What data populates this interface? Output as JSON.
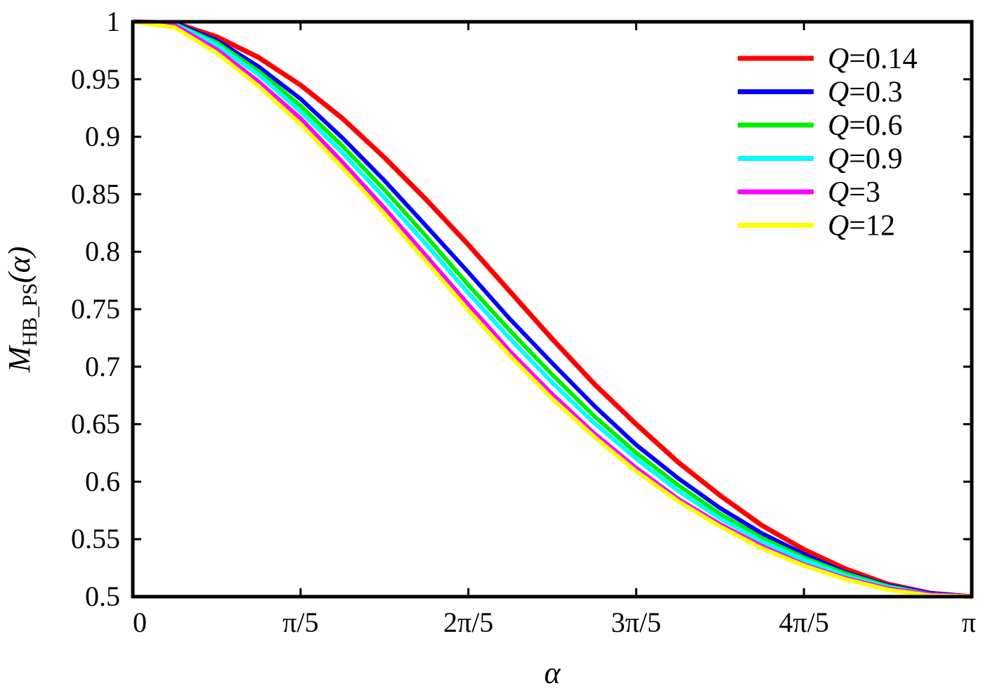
{
  "chart_data": {
    "type": "line",
    "xlabel": "α",
    "ylabel_main": "M",
    "ylabel_sub": "HB_PS",
    "ylabel_suffix": "(α)",
    "xlim": [
      0,
      3.14159
    ],
    "ylim": [
      0.5,
      1.0
    ],
    "xticks": [
      {
        "value": 0,
        "label": "0"
      },
      {
        "value": 0.62832,
        "label": "π/5"
      },
      {
        "value": 1.25664,
        "label": "2π/5"
      },
      {
        "value": 1.88496,
        "label": "3π/5"
      },
      {
        "value": 2.51327,
        "label": "4π/5"
      },
      {
        "value": 3.14159,
        "label": "π"
      }
    ],
    "yticks": [
      {
        "value": 1.0,
        "label": "1"
      },
      {
        "value": 0.95,
        "label": "0.95"
      },
      {
        "value": 0.9,
        "label": "0.9"
      },
      {
        "value": 0.85,
        "label": "0.85"
      },
      {
        "value": 0.8,
        "label": "0.8"
      },
      {
        "value": 0.75,
        "label": "0.75"
      },
      {
        "value": 0.7,
        "label": "0.7"
      },
      {
        "value": 0.65,
        "label": "0.65"
      },
      {
        "value": 0.6,
        "label": "0.6"
      },
      {
        "value": 0.55,
        "label": "0.55"
      },
      {
        "value": 0.5,
        "label": "0.5"
      }
    ],
    "grid": false,
    "legend_position": "top-right",
    "x": [
      0,
      0.157,
      0.314,
      0.471,
      0.628,
      0.785,
      0.942,
      1.1,
      1.257,
      1.414,
      1.571,
      1.728,
      1.885,
      2.042,
      2.199,
      2.356,
      2.513,
      2.67,
      2.827,
      2.985,
      3.142
    ],
    "series": [
      {
        "name": "Q=0.14",
        "legend_q": "Q",
        "legend_val": "=0.14",
        "color": "#ff0000",
        "values": [
          1.0,
          0.999,
          0.987,
          0.969,
          0.945,
          0.916,
          0.882,
          0.845,
          0.806,
          0.765,
          0.724,
          0.685,
          0.65,
          0.617,
          0.588,
          0.562,
          0.541,
          0.524,
          0.511,
          0.503,
          0.5
        ]
      },
      {
        "name": "Q=0.3",
        "legend_q": "Q",
        "legend_val": "=0.3",
        "color": "#0000ff",
        "values": [
          1.0,
          0.999,
          0.984,
          0.961,
          0.933,
          0.899,
          0.862,
          0.822,
          0.782,
          0.741,
          0.703,
          0.666,
          0.632,
          0.603,
          0.577,
          0.555,
          0.537,
          0.521,
          0.51,
          0.503,
          0.5
        ]
      },
      {
        "name": "Q=0.6",
        "legend_q": "Q",
        "legend_val": "=0.6",
        "color": "#00ee00",
        "values": [
          1.0,
          0.998,
          0.982,
          0.957,
          0.927,
          0.892,
          0.854,
          0.813,
          0.771,
          0.731,
          0.693,
          0.657,
          0.625,
          0.597,
          0.572,
          0.551,
          0.534,
          0.52,
          0.509,
          0.502,
          0.5
        ]
      },
      {
        "name": "Q=0.9",
        "legend_q": "Q",
        "legend_val": "=0.9",
        "color": "#00ffff",
        "values": [
          1.0,
          0.998,
          0.98,
          0.954,
          0.922,
          0.886,
          0.847,
          0.806,
          0.764,
          0.724,
          0.686,
          0.651,
          0.62,
          0.592,
          0.568,
          0.548,
          0.532,
          0.518,
          0.508,
          0.502,
          0.5
        ]
      },
      {
        "name": "Q=3",
        "legend_q": "Q",
        "legend_val": "=3",
        "color": "#ff00ff",
        "values": [
          1.0,
          0.997,
          0.976,
          0.948,
          0.916,
          0.878,
          0.838,
          0.796,
          0.754,
          0.713,
          0.676,
          0.642,
          0.612,
          0.585,
          0.563,
          0.544,
          0.528,
          0.516,
          0.507,
          0.502,
          0.5
        ]
      },
      {
        "name": "Q=12",
        "legend_q": "Q",
        "legend_val": "=12",
        "color": "#ffff00",
        "values": [
          1.0,
          0.995,
          0.973,
          0.944,
          0.911,
          0.873,
          0.833,
          0.791,
          0.749,
          0.709,
          0.672,
          0.639,
          0.609,
          0.583,
          0.561,
          0.542,
          0.527,
          0.515,
          0.506,
          0.501,
          0.5
        ]
      }
    ]
  }
}
